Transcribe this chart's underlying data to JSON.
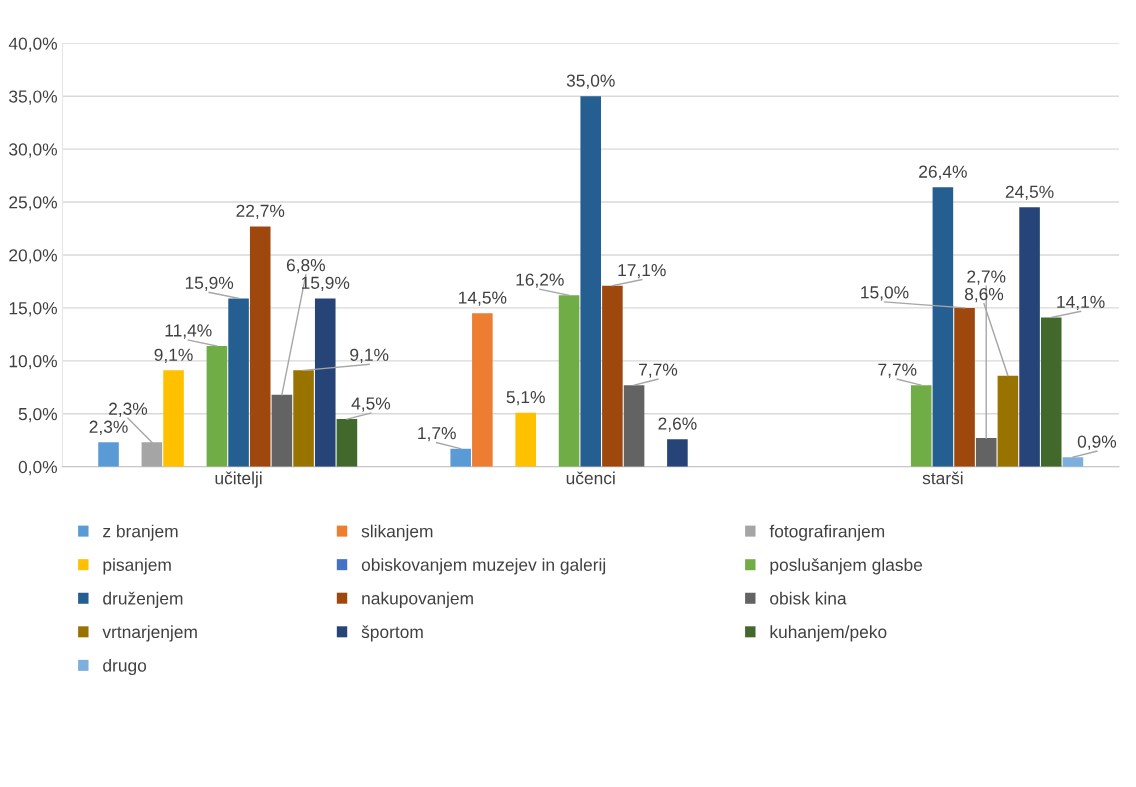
{
  "chart_data": {
    "type": "bar",
    "categories": [
      "učitelji",
      "učenci",
      "starši"
    ],
    "ylim": [
      0,
      40
    ],
    "yticks": [
      {
        "value": 0,
        "label": "0,0%"
      },
      {
        "value": 5,
        "label": "5,0%"
      },
      {
        "value": 10,
        "label": "10,0%"
      },
      {
        "value": 15,
        "label": "15,0%"
      },
      {
        "value": 20,
        "label": "20,0%"
      },
      {
        "value": 25,
        "label": "25,0%"
      },
      {
        "value": 30,
        "label": "30,0%"
      },
      {
        "value": 35,
        "label": "35,0%"
      },
      {
        "value": 40,
        "label": "40,0%"
      }
    ],
    "grid": "y",
    "legend": "bottom",
    "series": [
      {
        "name": "z branjem",
        "color": "#5b9bd5",
        "values": [
          2.3,
          1.7,
          null
        ],
        "value_labels": [
          "2,3%",
          "1,7%",
          null
        ]
      },
      {
        "name": "slikanjem",
        "color": "#ed7d31",
        "values": [
          null,
          14.5,
          null
        ],
        "value_labels": [
          null,
          "14,5%",
          null
        ]
      },
      {
        "name": "fotografiranjem",
        "color": "#a5a5a5",
        "values": [
          2.3,
          null,
          null
        ],
        "value_labels": [
          "2,3%",
          null,
          null
        ]
      },
      {
        "name": "pisanjem",
        "color": "#ffc000",
        "values": [
          9.1,
          5.1,
          null
        ],
        "value_labels": [
          "9,1%",
          "5,1%",
          null
        ]
      },
      {
        "name": "obiskovanjem muzejev in galerij",
        "color": "#4472c4",
        "values": [
          null,
          null,
          null
        ],
        "value_labels": [
          null,
          null,
          null
        ]
      },
      {
        "name": "poslušanjem glasbe",
        "color": "#70ad47",
        "values": [
          11.4,
          16.2,
          7.7
        ],
        "value_labels": [
          "11,4%",
          "16,2%",
          "7,7%"
        ]
      },
      {
        "name": "druženjem",
        "color": "#255e91",
        "values": [
          15.9,
          35.0,
          26.4
        ],
        "value_labels": [
          "15,9%",
          "35,0%",
          "26,4%"
        ]
      },
      {
        "name": "nakupovanjem",
        "color": "#9e480e",
        "values": [
          22.7,
          17.1,
          15.0
        ],
        "value_labels": [
          "22,7%",
          "17,1%",
          "15,0%"
        ]
      },
      {
        "name": "obisk kina",
        "color": "#636363",
        "values": [
          6.8,
          7.7,
          2.7
        ],
        "value_labels": [
          "6,8%",
          "7,7%",
          "2,7%"
        ]
      },
      {
        "name": "vrtnarjenjem",
        "color": "#997300",
        "values": [
          9.1,
          null,
          8.6
        ],
        "value_labels": [
          "9,1%",
          null,
          "8,6%"
        ]
      },
      {
        "name": "športom",
        "color": "#264478",
        "values": [
          15.9,
          2.6,
          24.5
        ],
        "value_labels": [
          "15,9%",
          "2,6%",
          "24,5%"
        ]
      },
      {
        "name": "kuhanjem/peko",
        "color": "#43682b",
        "values": [
          4.5,
          null,
          14.1
        ],
        "value_labels": [
          "4,5%",
          null,
          "14,1%"
        ]
      },
      {
        "name": "drugo",
        "color": "#7cafdd",
        "values": [
          null,
          null,
          0.9
        ],
        "value_labels": [
          null,
          null,
          "0,9%"
        ]
      }
    ]
  }
}
